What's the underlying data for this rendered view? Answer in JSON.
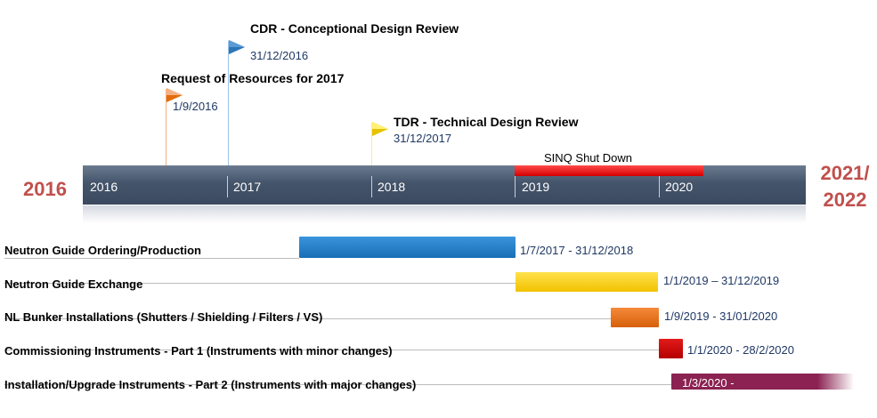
{
  "start_year": "2016",
  "end_year_line1": "2021/",
  "end_year_line2": "2022",
  "years": [
    "2016",
    "2017",
    "2018",
    "2019",
    "2020"
  ],
  "shutdown": {
    "label": "SINQ Shut Down",
    "color": "#e31a1c"
  },
  "milestones": [
    {
      "title": "CDR - Conceptional Design Review",
      "date": "31/12/2016",
      "color": "#2e75b6"
    },
    {
      "title": "Request of Resources for 2017",
      "date": "1/9/2016",
      "color": "#ed7d31"
    },
    {
      "title": "TDR - Technical Design Review",
      "date": "31/12/2017",
      "color": "#ffd400"
    }
  ],
  "tasks": [
    {
      "label": "Neutron Guide Ordering/Production",
      "dates": "1/7/2017 - 31/12/2018",
      "color": "#1f77c4"
    },
    {
      "label": "Neutron Guide Exchange",
      "dates": "1/1/2019 – 31/12/2019",
      "color": "#ffcc00"
    },
    {
      "label": "NL Bunker Installations (Shutters / Shielding / Filters / VS)",
      "dates": "1/9/2019 - 31/01/2020",
      "color": "#e46c0a"
    },
    {
      "label": "Commissioning Instruments - Part 1 (Instruments with minor changes)",
      "dates": "1/1/2020 - 28/2/2020",
      "color": "#c00000"
    },
    {
      "label": "Installation/Upgrade Instruments - Part 2 (Instruments with major changes)",
      "dates": "1/3/2020 -",
      "color": "#8b2252"
    }
  ]
}
